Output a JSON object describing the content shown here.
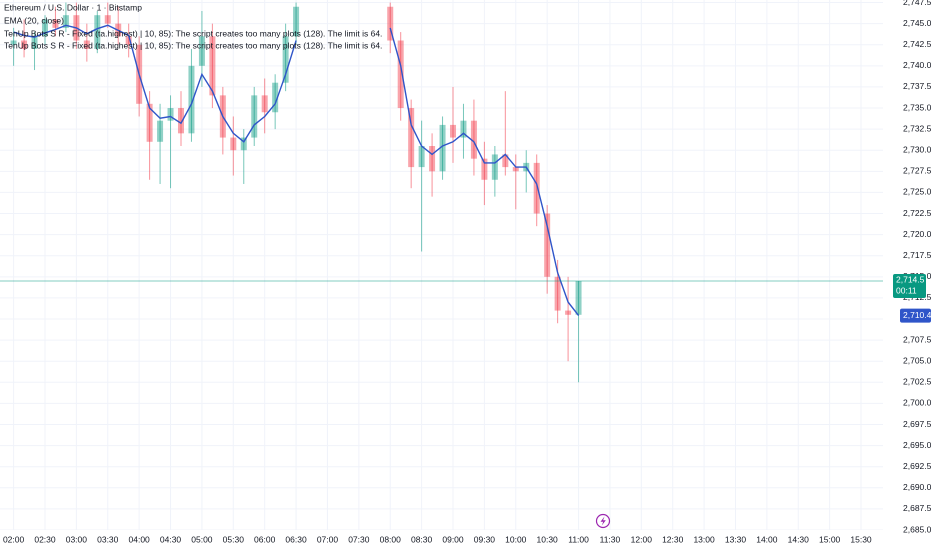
{
  "chart_data": {
    "type": "candlestick",
    "title": "Ethereum / U.S. Dollar · 1 · Bitstamp",
    "annotations": [
      "TenUp Bots S R - Fixed (ta.highest) | 10, 85): The script creates too many plots (128). The limit is 64.",
      "TenUp Bots S R - Fixed (ta.highest) | 10, 85): The script creates too many plots (128). The limit is 64."
    ],
    "x": [
      "02:00",
      "02:10",
      "02:20",
      "02:30",
      "02:40",
      "02:50",
      "03:00",
      "03:10",
      "03:20",
      "03:30",
      "03:40",
      "03:50",
      "04:00",
      "04:10",
      "04:20",
      "04:30",
      "04:40",
      "04:50",
      "05:00",
      "05:10",
      "05:20",
      "05:30",
      "05:40",
      "05:50",
      "06:00",
      "06:10",
      "06:20",
      "06:30",
      "07:15",
      "08:00",
      "08:10",
      "08:20",
      "08:30",
      "08:40",
      "08:50",
      "09:00",
      "09:10",
      "09:20",
      "09:30",
      "09:40",
      "09:50",
      "10:00",
      "10:10",
      "10:20",
      "10:30",
      "10:40",
      "10:50",
      "11:00"
    ],
    "open": [
      2742.5,
      2743.0,
      2742.0,
      2743.5,
      2745.5,
      2744.5,
      2746.0,
      2743.0,
      2742.0,
      2746.0,
      2745.0,
      2743.5,
      2742.5,
      2735.5,
      2731.0,
      2733.5,
      2735.0,
      2732.0,
      2740.0,
      2743.5,
      2736.5,
      2731.5,
      2730.0,
      2731.5,
      2736.5,
      2734.5,
      2738.0,
      2743.5,
      null,
      2747.0,
      2743.0,
      2735.0,
      2728.0,
      2730.5,
      2727.5,
      2733.0,
      2731.5,
      2733.5,
      2729.0,
      2726.5,
      2729.5,
      2728.0,
      2727.5,
      2728.5,
      2722.5,
      2715.0,
      2711.0,
      2710.5
    ],
    "high": [
      2744.5,
      2745.5,
      2744.0,
      2746.0,
      2747.0,
      2747.5,
      2747.5,
      2745.0,
      2746.5,
      2747.5,
      2747.0,
      2745.0,
      2743.5,
      2737.0,
      2735.5,
      2736.5,
      2737.0,
      2742.0,
      2746.5,
      2745.0,
      2737.5,
      2734.0,
      2732.5,
      2737.5,
      2738.5,
      2739.0,
      2745.0,
      2747.5,
      null,
      2747.5,
      2744.0,
      2736.0,
      2733.5,
      2732.0,
      2734.0,
      2737.5,
      2735.5,
      2736.0,
      2731.0,
      2730.5,
      2737.0,
      2729.5,
      2730.0,
      2729.5,
      2723.5,
      2717.0,
      2715.0,
      2714.5
    ],
    "low": [
      2740.0,
      2741.0,
      2739.5,
      2742.5,
      2743.5,
      2744.0,
      2742.0,
      2740.5,
      2741.5,
      2744.5,
      2742.5,
      2741.0,
      2734.0,
      2726.5,
      2726.0,
      2725.5,
      2730.5,
      2731.0,
      2737.5,
      2735.0,
      2729.5,
      2727.0,
      2726.0,
      2730.5,
      2732.0,
      2732.5,
      2737.0,
      2742.5,
      null,
      2741.5,
      2733.5,
      2725.5,
      2718.0,
      2724.5,
      2726.5,
      2728.5,
      2729.0,
      2727.0,
      2723.5,
      2724.5,
      2727.0,
      2723.0,
      2725.0,
      2721.0,
      2713.0,
      2709.5,
      2705.0,
      2702.5
    ],
    "close": [
      2743.0,
      2742.0,
      2743.5,
      2745.5,
      2744.5,
      2746.0,
      2743.0,
      2742.0,
      2746.0,
      2745.0,
      2743.5,
      2742.5,
      2735.5,
      2731.0,
      2733.5,
      2735.0,
      2732.0,
      2740.0,
      2743.5,
      2736.5,
      2731.5,
      2730.0,
      2731.5,
      2736.5,
      2734.5,
      2738.0,
      2743.5,
      2747.0,
      null,
      2743.0,
      2735.0,
      2728.0,
      2730.5,
      2727.5,
      2733.0,
      2731.5,
      2733.5,
      2729.0,
      2726.5,
      2729.5,
      2728.0,
      2727.5,
      2728.5,
      2722.5,
      2715.0,
      2711.0,
      2710.5,
      2714.5
    ],
    "up_color": "#089981",
    "down_color": "#f23645",
    "overlays": [
      {
        "name": "EMA (20, close)",
        "color": "#2f55c9",
        "values": [
          2744.0,
          2743.6,
          2743.4,
          2743.9,
          2744.3,
          2744.8,
          2744.5,
          2743.8,
          2744.4,
          2744.8,
          2744.2,
          2743.6,
          2739.0,
          2735.0,
          2733.8,
          2734.0,
          2733.2,
          2735.5,
          2739.0,
          2737.0,
          2734.0,
          2732.0,
          2731.0,
          2733.0,
          2734.0,
          2735.5,
          2739.0,
          2743.0,
          null,
          2744.5,
          2740.0,
          2733.0,
          2730.5,
          2729.5,
          2730.5,
          2731.0,
          2732.0,
          2731.0,
          2728.5,
          2728.5,
          2729.5,
          2728.0,
          2728.0,
          2726.0,
          2721.0,
          2715.5,
          2712.0,
          2710.4
        ]
      }
    ],
    "last_price": {
      "value": 2714.5,
      "label": "2,714.5"
    },
    "countdown": "00:11",
    "ema_last": {
      "value": 2710.4,
      "label": "2,710.4"
    },
    "xlim": [
      "01:47",
      "15:51"
    ],
    "xticks": [
      "02:00",
      "02:30",
      "03:00",
      "03:30",
      "04:00",
      "04:30",
      "05:00",
      "05:30",
      "06:00",
      "06:30",
      "07:00",
      "07:30",
      "08:00",
      "08:30",
      "09:00",
      "09:30",
      "10:00",
      "10:30",
      "11:00",
      "11:30",
      "12:00",
      "12:30",
      "13:00",
      "13:30",
      "14:00",
      "14:30",
      "15:00",
      "15:30"
    ],
    "ylim": [
      2685.0,
      2747.8
    ],
    "yticks": [
      {
        "value": 2685.0,
        "label": "2,685.0"
      },
      {
        "value": 2687.5,
        "label": "2,687.5"
      },
      {
        "value": 2690.0,
        "label": "2,690.0"
      },
      {
        "value": 2692.5,
        "label": "2,692.5"
      },
      {
        "value": 2695.0,
        "label": "2,695.0"
      },
      {
        "value": 2697.5,
        "label": "2,697.5"
      },
      {
        "value": 2700.0,
        "label": "2,700.0"
      },
      {
        "value": 2702.5,
        "label": "2,702.5"
      },
      {
        "value": 2705.0,
        "label": "2,705.0"
      },
      {
        "value": 2707.5,
        "label": "2,707.5"
      },
      {
        "value": 2710.0,
        "label": "2,710.0"
      },
      {
        "value": 2712.5,
        "label": "2,712.5"
      },
      {
        "value": 2715.0,
        "label": "2,715.0"
      },
      {
        "value": 2717.5,
        "label": "2,717.5"
      },
      {
        "value": 2720.0,
        "label": "2,720.0"
      },
      {
        "value": 2722.5,
        "label": "2,722.5"
      },
      {
        "value": 2725.0,
        "label": "2,725.0"
      },
      {
        "value": 2727.5,
        "label": "2,727.5"
      },
      {
        "value": 2730.0,
        "label": "2,730.0"
      },
      {
        "value": 2732.5,
        "label": "2,732.5"
      },
      {
        "value": 2735.0,
        "label": "2,735.0"
      },
      {
        "value": 2737.5,
        "label": "2,737.5"
      },
      {
        "value": 2740.0,
        "label": "2,740.0"
      },
      {
        "value": 2742.5,
        "label": "2,742.5"
      },
      {
        "value": 2745.0,
        "label": "2,745.0"
      },
      {
        "value": 2747.5,
        "label": "2,747.5"
      }
    ],
    "grid": true
  }
}
